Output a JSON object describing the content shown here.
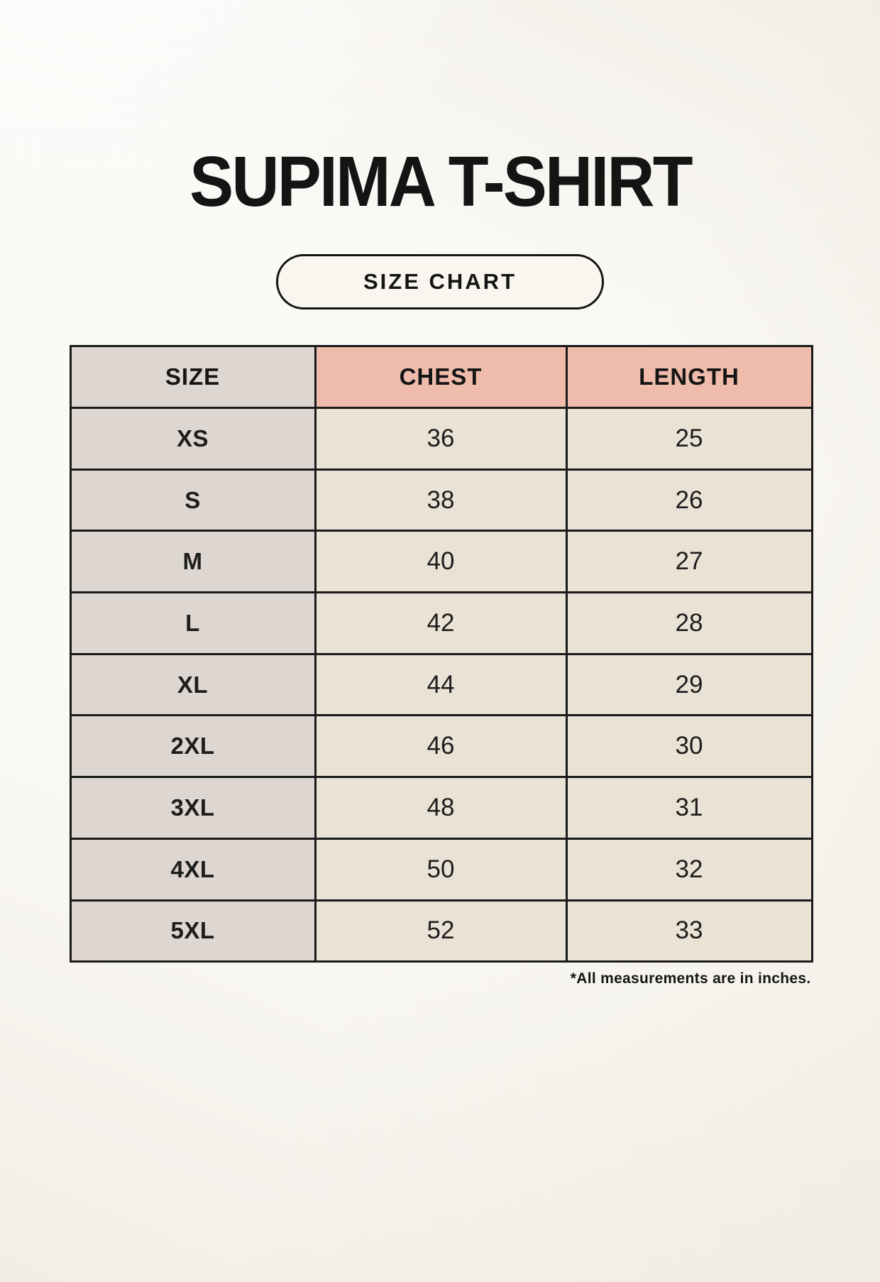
{
  "page": {
    "title": "SUPIMA T-SHIRT",
    "size_chart_badge": "SIZE CHART",
    "footnote": "*All measurements are in inches."
  },
  "chart_data": {
    "type": "table",
    "title": "SUPIMA T-SHIRT",
    "columns": [
      "SIZE",
      "CHEST",
      "LENGTH"
    ],
    "rows": [
      [
        "XS",
        "36",
        "25"
      ],
      [
        "S",
        "38",
        "26"
      ],
      [
        "M",
        "40",
        "27"
      ],
      [
        "L",
        "42",
        "28"
      ],
      [
        "XL",
        "44",
        "29"
      ],
      [
        "2XL",
        "46",
        "30"
      ],
      [
        "3XL",
        "48",
        "31"
      ],
      [
        "4XL",
        "50",
        "32"
      ],
      [
        "5XL",
        "52",
        "33"
      ]
    ],
    "units_note": "*All measurements are in inches.",
    "layout": {
      "header_row": true,
      "grid": true,
      "size_column_shaded": true
    }
  },
  "colors": {
    "page_background": "#f7f4ed",
    "size_column_bg": "#ddd6d1",
    "header_accent_bg": "#efbcab",
    "data_cell_bg": "#e9e2d5",
    "border": "#1a1a1a",
    "text": "#141414"
  }
}
